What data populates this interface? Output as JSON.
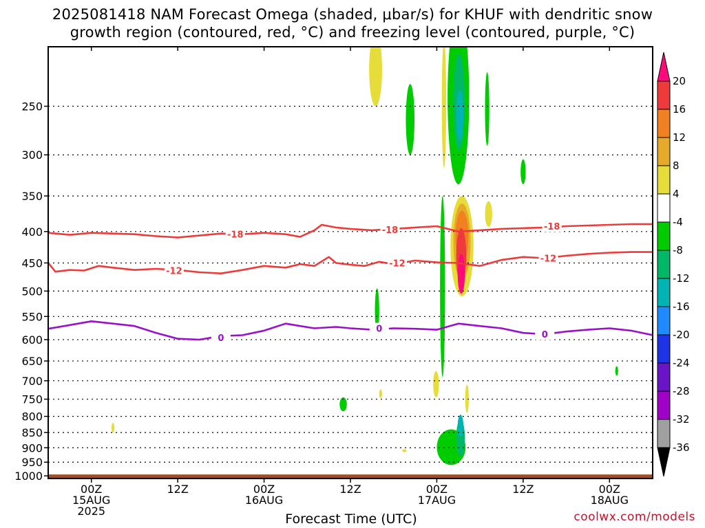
{
  "title": {
    "line1": "2025081418 NAM Forecast Omega (shaded, μbar/s) for KHUF with dendritic snow",
    "line2": "growth region (contoured, red, °C) and freezing level (contoured, purple, °C)"
  },
  "xlabel": "Forecast Time (UTC)",
  "credit": "coolwx.com/models",
  "chart_data": {
    "type": "time-height",
    "x": {
      "unit": "forecast hours from 2025081418",
      "range": [
        0,
        84
      ],
      "ticks": [
        {
          "hour": 6,
          "lines": [
            "00Z",
            "15AUG",
            "2025"
          ]
        },
        {
          "hour": 18,
          "lines": [
            "12Z"
          ]
        },
        {
          "hour": 30,
          "lines": [
            "00Z",
            "16AUG"
          ]
        },
        {
          "hour": 42,
          "lines": [
            "12Z"
          ]
        },
        {
          "hour": 54,
          "lines": [
            "00Z",
            "17AUG"
          ]
        },
        {
          "hour": 66,
          "lines": [
            "12Z"
          ]
        },
        {
          "hour": 78,
          "lines": [
            "00Z",
            "18AUG"
          ]
        }
      ]
    },
    "y": {
      "unit": "hPa",
      "scale": "log",
      "range": [
        200,
        1010
      ],
      "ticks": [
        250,
        300,
        350,
        400,
        450,
        500,
        550,
        600,
        650,
        700,
        750,
        800,
        850,
        900,
        950,
        1000
      ]
    },
    "colorbar": {
      "labels": [
        "20",
        "16",
        "12",
        "8",
        "4",
        "-4",
        "-8",
        "-12",
        "-16",
        "-20",
        "-24",
        "-28",
        "-32",
        "-36"
      ],
      "colors": [
        "#ff0a7a",
        "#ee3a3a",
        "#f08020",
        "#e6aa2a",
        "#e6dc3a",
        "#ffffff",
        "#00cc00",
        "#00b866",
        "#00b4b4",
        "#1e8cff",
        "#1e32e6",
        "#6a14c8",
        "#a000c8",
        "#a0a0a0",
        "#000000"
      ]
    },
    "contours": {
      "dgz_color": "#ee3a3a",
      "freezing_color": "#9a10c8",
      "dgz_minus18": {
        "label": "-18",
        "x": [
          0,
          3,
          6,
          9,
          12,
          15,
          18,
          21,
          24,
          27,
          30,
          33,
          35,
          37,
          38,
          40,
          42,
          45,
          48,
          51,
          54,
          57,
          60,
          63,
          66,
          69,
          72,
          75,
          78,
          81,
          84
        ],
        "p": [
          402,
          405,
          402,
          403,
          404,
          407,
          409,
          406,
          403,
          404,
          402,
          404,
          408,
          398,
          390,
          394,
          396,
          398,
          396,
          394,
          392,
          400,
          398,
          396,
          395,
          394,
          392,
          391,
          390,
          389,
          389
        ],
        "label_at": [
          [
            26,
            404
          ],
          [
            47.5,
            397
          ],
          [
            70,
            392
          ]
        ]
      },
      "dgz_minus12": {
        "label": "-12",
        "x": [
          0,
          1,
          3,
          5,
          7,
          9,
          12,
          15,
          18,
          21,
          24,
          27,
          30,
          33,
          35,
          37,
          39,
          40,
          42,
          44,
          46,
          48,
          51,
          54,
          57,
          60,
          63,
          66,
          69,
          72,
          75,
          78,
          81,
          84
        ],
        "p": [
          450,
          465,
          462,
          463,
          455,
          458,
          462,
          460,
          462,
          466,
          468,
          462,
          455,
          458,
          452,
          455,
          440,
          450,
          453,
          455,
          448,
          452,
          446,
          449,
          450,
          455,
          445,
          440,
          442,
          438,
          435,
          433,
          432,
          432
        ],
        "label_at": [
          [
            17.5,
            463
          ],
          [
            48.5,
            450
          ],
          [
            69.5,
            442
          ]
        ]
      },
      "freezing_0": {
        "label": "0",
        "x": [
          0,
          3,
          6,
          9,
          12,
          15,
          18,
          21,
          24,
          27,
          30,
          33,
          35,
          37,
          40,
          42,
          45,
          48,
          51,
          54,
          57,
          60,
          63,
          66,
          69,
          72,
          75,
          78,
          81,
          84
        ],
        "p": [
          576,
          568,
          560,
          565,
          570,
          585,
          598,
          600,
          592,
          590,
          580,
          565,
          570,
          575,
          572,
          575,
          578,
          575,
          576,
          578,
          565,
          570,
          575,
          585,
          588,
          582,
          578,
          575,
          580,
          590
        ],
        "label_at": [
          [
            24,
            595
          ],
          [
            46,
            575
          ],
          [
            69,
            588
          ]
        ]
      }
    },
    "omega_blobs": [
      {
        "level": 4,
        "x": 45.5,
        "p": 220,
        "rx": 0.9,
        "ry_p": 30
      },
      {
        "level": -4,
        "x": 50.3,
        "p": 265,
        "rx": 0.6,
        "ry_p": 35
      },
      {
        "level": 4,
        "x": 55.0,
        "p": 255,
        "rx": 0.3,
        "ry_p": 60
      },
      {
        "level": -4,
        "x": 57.0,
        "p": 255,
        "rx": 1.5,
        "ry_p": 80
      },
      {
        "level": -8,
        "x": 57.1,
        "p": 250,
        "rx": 0.8,
        "ry_p": 45
      },
      {
        "level": -12,
        "x": 57.2,
        "p": 260,
        "rx": 0.5,
        "ry_p": 25
      },
      {
        "level": -4,
        "x": 61.0,
        "p": 255,
        "rx": 0.3,
        "ry_p": 35
      },
      {
        "level": -4,
        "x": 66.0,
        "p": 320,
        "rx": 0.35,
        "ry_p": 15
      },
      {
        "level": 4,
        "x": 57.5,
        "p": 430,
        "rx": 1.6,
        "ry_p": 80
      },
      {
        "level": 8,
        "x": 57.5,
        "p": 420,
        "rx": 1.2,
        "ry_p": 60
      },
      {
        "level": 12,
        "x": 57.5,
        "p": 410,
        "rx": 0.9,
        "ry_p": 40
      },
      {
        "level": 16,
        "x": 57.4,
        "p": 440,
        "rx": 0.7,
        "ry_p": 45
      },
      {
        "level": 20,
        "x": 57.4,
        "p": 470,
        "rx": 0.5,
        "ry_p": 35
      },
      {
        "level": 4,
        "x": 61.2,
        "p": 375,
        "rx": 0.5,
        "ry_p": 18
      },
      {
        "level": -4,
        "x": 54.8,
        "p": 520,
        "rx": 0.35,
        "ry_p": 170
      },
      {
        "level": -4,
        "x": 45.7,
        "p": 540,
        "rx": 0.3,
        "ry_p": 45
      },
      {
        "level": -4,
        "x": 41.0,
        "p": 765,
        "rx": 0.5,
        "ry_p": 20
      },
      {
        "level": 4,
        "x": 46.2,
        "p": 735,
        "rx": 0.2,
        "ry_p": 12
      },
      {
        "level": 4,
        "x": 53.9,
        "p": 710,
        "rx": 0.4,
        "ry_p": 35
      },
      {
        "level": 4,
        "x": 58.2,
        "p": 750,
        "rx": 0.25,
        "ry_p": 40
      },
      {
        "level": 4,
        "x": 49.5,
        "p": 910,
        "rx": 0.3,
        "ry_p": 5
      },
      {
        "level": 4,
        "x": 9.0,
        "p": 835,
        "rx": 0.2,
        "ry_p": 15
      },
      {
        "level": -4,
        "x": 56.0,
        "p": 900,
        "rx": 2.0,
        "ry_p": 60
      },
      {
        "level": -8,
        "x": 57.3,
        "p": 870,
        "rx": 0.6,
        "ry_p": 60
      },
      {
        "level": -12,
        "x": 57.3,
        "p": 830,
        "rx": 0.4,
        "ry_p": 35
      },
      {
        "level": -4,
        "x": 79.0,
        "p": 675,
        "rx": 0.2,
        "ry_p": 12
      }
    ]
  }
}
